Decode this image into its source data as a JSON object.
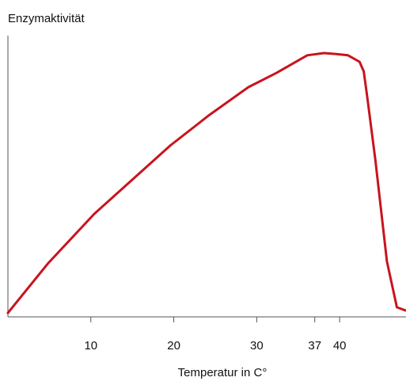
{
  "chart_data": {
    "type": "line",
    "y_label": "Enzymaktivität",
    "x_label": "Temperatur in C°",
    "x": [
      0,
      4.8,
      10.4,
      19.6,
      24.3,
      29,
      32.4,
      36.1,
      38.1,
      39.5,
      41,
      42.4,
      42.9,
      43.3,
      44.3,
      45.7,
      46.9,
      47.9
    ],
    "series": [
      {
        "color": "#c8141e",
        "values": [
          1.4,
          18.9,
          36.6,
          61,
          71.8,
          81.7,
          86.8,
          93,
          93.8,
          93.5,
          93,
          90.7,
          87.3,
          78.9,
          56,
          19.7,
          3.4,
          2.3
        ]
      }
    ],
    "xlim": [
      0,
      48
    ],
    "ylim": [
      0,
      100
    ],
    "xticks": [
      10,
      20,
      30,
      37,
      40
    ]
  }
}
